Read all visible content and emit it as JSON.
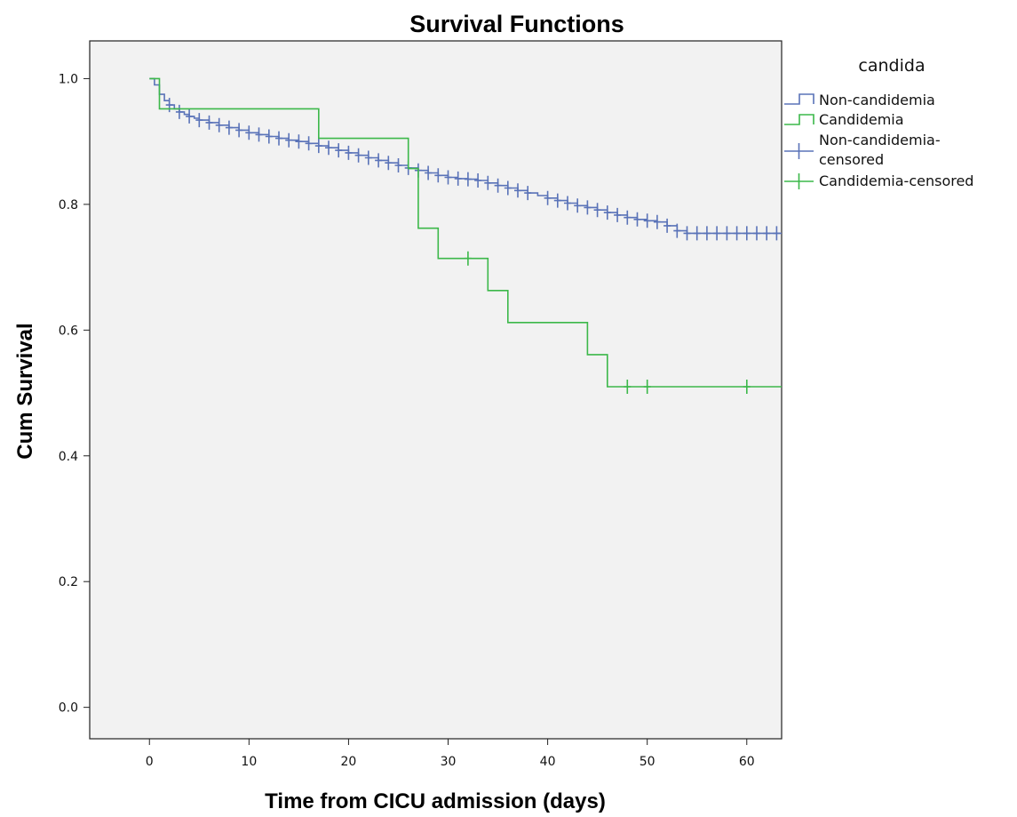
{
  "chart_data": {
    "type": "line",
    "title": "Survival Functions",
    "xlabel": "Time from CICU admission (days)",
    "ylabel": "Cum Survival",
    "xlim": [
      -6,
      63.5
    ],
    "ylim": [
      -0.05,
      1.06
    ],
    "x_ticks": [
      0,
      10,
      20,
      30,
      40,
      50,
      60
    ],
    "y_ticks": [
      0.0,
      0.2,
      0.4,
      0.6,
      0.8,
      1.0
    ],
    "x_tick_labels": [
      "0",
      "10",
      "20",
      "30",
      "40",
      "50",
      "60"
    ],
    "y_tick_labels": [
      "0.0",
      "0.2",
      "0.4",
      "0.6",
      "0.8",
      "1.0"
    ],
    "grid": false,
    "legend": {
      "title": "candida",
      "position": "right",
      "entries": [
        "Non-candidemia",
        "Candidemia",
        "Non-candidemia-",
        "censored",
        "Candidemia-censored"
      ]
    },
    "colors": {
      "non_candidemia": "#5a73b8",
      "candidemia": "#3cb84a",
      "plot_background": "#f2f2f2"
    },
    "series": [
      {
        "name": "Non-candidemia",
        "step_x": [
          0,
          0.5,
          1,
          1.5,
          2,
          2.5,
          3,
          3.5,
          4,
          4.5,
          5,
          6,
          7,
          8,
          9,
          10,
          11,
          12,
          13,
          14,
          15,
          16,
          17,
          18,
          19,
          20,
          21,
          22,
          23,
          24,
          25,
          26,
          27,
          28,
          29,
          30,
          31,
          32,
          33,
          34,
          35,
          36,
          37,
          38,
          39,
          40,
          41,
          42,
          43,
          44,
          45,
          46,
          47,
          48,
          49,
          50,
          51,
          52,
          53,
          54,
          55,
          56,
          57,
          58,
          59,
          60,
          61,
          62,
          63.5
        ],
        "step_y": [
          1.0,
          0.99,
          0.975,
          0.965,
          0.958,
          0.952,
          0.947,
          0.943,
          0.94,
          0.937,
          0.934,
          0.93,
          0.926,
          0.922,
          0.918,
          0.914,
          0.911,
          0.908,
          0.905,
          0.902,
          0.9,
          0.897,
          0.893,
          0.89,
          0.886,
          0.882,
          0.878,
          0.874,
          0.87,
          0.866,
          0.862,
          0.858,
          0.854,
          0.85,
          0.846,
          0.843,
          0.841,
          0.84,
          0.838,
          0.834,
          0.83,
          0.826,
          0.822,
          0.818,
          0.814,
          0.81,
          0.806,
          0.802,
          0.798,
          0.795,
          0.791,
          0.787,
          0.783,
          0.779,
          0.776,
          0.774,
          0.772,
          0.766,
          0.758,
          0.754,
          0.754,
          0.754,
          0.754,
          0.754,
          0.754,
          0.754,
          0.754,
          0.754,
          0.754
        ],
        "censored_x": [
          2,
          3,
          4,
          5,
          6,
          7,
          8,
          9,
          10,
          11,
          12,
          13,
          14,
          15,
          16,
          17,
          18,
          19,
          20,
          21,
          22,
          23,
          24,
          25,
          26,
          27,
          28,
          29,
          30,
          31,
          32,
          33,
          34,
          35,
          36,
          37,
          38,
          40,
          41,
          42,
          43,
          44,
          45,
          46,
          47,
          48,
          49,
          50,
          51,
          52,
          53,
          54,
          55,
          56,
          57,
          58,
          59,
          60,
          61,
          62,
          63
        ]
      },
      {
        "name": "Candidemia",
        "step_x": [
          0,
          1,
          17,
          26,
          27,
          29,
          34,
          36,
          44,
          46,
          63.5
        ],
        "step_y": [
          1.0,
          0.952,
          0.905,
          0.857,
          0.762,
          0.714,
          0.663,
          0.612,
          0.561,
          0.51,
          0.51
        ],
        "censored_x": [
          32,
          48,
          50,
          60
        ]
      }
    ]
  }
}
